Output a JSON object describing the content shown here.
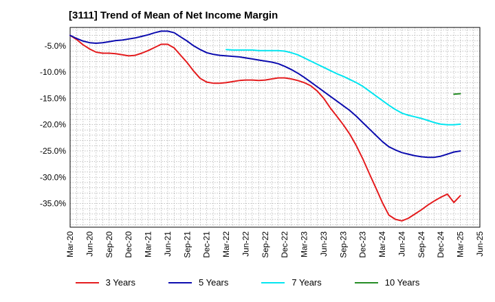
{
  "chart_data": {
    "type": "line",
    "title": "[3111]  Trend of Mean of Net Income Margin",
    "xlabel": "",
    "ylabel": "",
    "x_ticks": [
      "Mar-20",
      "Jun-20",
      "Sep-20",
      "Dec-20",
      "Mar-21",
      "Jun-21",
      "Sep-21",
      "Dec-21",
      "Mar-22",
      "Jun-22",
      "Sep-22",
      "Dec-22",
      "Mar-23",
      "Jun-23",
      "Sep-23",
      "Dec-23",
      "Mar-24",
      "Jun-24",
      "Sep-24",
      "Dec-24",
      "Mar-25",
      "Jun-25"
    ],
    "y_ticks": [
      -5,
      -10,
      -15,
      -20,
      -25,
      -30,
      -35
    ],
    "y_tick_labels": [
      "-5.0%",
      "-10.0%",
      "-15.0%",
      "-20.0%",
      "-25.0%",
      "-30.0%",
      "-35.0%"
    ],
    "ylim": [
      -39.5,
      -1.5
    ],
    "grid": true,
    "legend_position": "bottom",
    "series": [
      {
        "name": "3 Years",
        "color": "#e41a1c",
        "x": [
          "2020-03",
          "2020-04",
          "2020-05",
          "2020-06",
          "2020-07",
          "2020-08",
          "2020-09",
          "2020-10",
          "2020-11",
          "2020-12",
          "2021-01",
          "2021-02",
          "2021-03",
          "2021-04",
          "2021-05",
          "2021-06",
          "2021-07",
          "2021-08",
          "2021-09",
          "2021-10",
          "2021-11",
          "2021-12",
          "2022-01",
          "2022-02",
          "2022-03",
          "2022-04",
          "2022-05",
          "2022-06",
          "2022-07",
          "2022-08",
          "2022-09",
          "2022-10",
          "2022-11",
          "2022-12",
          "2023-01",
          "2023-02",
          "2023-03",
          "2023-04",
          "2023-05",
          "2023-06",
          "2023-07",
          "2023-08",
          "2023-09",
          "2023-10",
          "2023-11",
          "2023-12",
          "2024-01",
          "2024-02",
          "2024-03",
          "2024-04",
          "2024-05",
          "2024-06",
          "2024-07",
          "2024-08",
          "2024-09",
          "2024-10",
          "2024-11",
          "2024-12",
          "2025-01",
          "2025-02",
          "2025-03"
        ],
        "values": [
          -3.0,
          -3.8,
          -4.8,
          -5.6,
          -6.2,
          -6.4,
          -6.4,
          -6.5,
          -6.7,
          -6.9,
          -6.8,
          -6.4,
          -5.9,
          -5.3,
          -4.7,
          -4.7,
          -5.4,
          -6.8,
          -8.2,
          -9.8,
          -11.2,
          -11.9,
          -12.1,
          -12.1,
          -12.0,
          -11.8,
          -11.6,
          -11.5,
          -11.5,
          -11.6,
          -11.5,
          -11.3,
          -11.1,
          -11.1,
          -11.3,
          -11.6,
          -12.0,
          -12.6,
          -13.6,
          -15.0,
          -16.8,
          -18.4,
          -20.0,
          -21.8,
          -24.0,
          -26.5,
          -29.3,
          -32.0,
          -34.8,
          -37.2,
          -38.0,
          -38.3,
          -37.8,
          -37.0,
          -36.2,
          -35.3,
          -34.5,
          -33.8,
          -33.2,
          -34.8,
          -33.5
        ]
      },
      {
        "name": "5 Years",
        "color": "#0a0aae",
        "x": [
          "2020-03",
          "2020-04",
          "2020-05",
          "2020-06",
          "2020-07",
          "2020-08",
          "2020-09",
          "2020-10",
          "2020-11",
          "2020-12",
          "2021-01",
          "2021-02",
          "2021-03",
          "2021-04",
          "2021-05",
          "2021-06",
          "2021-07",
          "2021-08",
          "2021-09",
          "2021-10",
          "2021-11",
          "2021-12",
          "2022-01",
          "2022-02",
          "2022-03",
          "2022-04",
          "2022-05",
          "2022-06",
          "2022-07",
          "2022-08",
          "2022-09",
          "2022-10",
          "2022-11",
          "2022-12",
          "2023-01",
          "2023-02",
          "2023-03",
          "2023-04",
          "2023-05",
          "2023-06",
          "2023-07",
          "2023-08",
          "2023-09",
          "2023-10",
          "2023-11",
          "2023-12",
          "2024-01",
          "2024-02",
          "2024-03",
          "2024-04",
          "2024-05",
          "2024-06",
          "2024-07",
          "2024-08",
          "2024-09",
          "2024-10",
          "2024-11",
          "2024-12",
          "2025-01",
          "2025-02",
          "2025-03"
        ],
        "values": [
          -3.0,
          -3.6,
          -4.1,
          -4.4,
          -4.5,
          -4.4,
          -4.2,
          -4.0,
          -3.9,
          -3.7,
          -3.5,
          -3.2,
          -2.9,
          -2.5,
          -2.2,
          -2.2,
          -2.5,
          -3.3,
          -4.1,
          -5.0,
          -5.7,
          -6.3,
          -6.6,
          -6.8,
          -6.9,
          -7.0,
          -7.1,
          -7.3,
          -7.5,
          -7.7,
          -7.9,
          -8.1,
          -8.4,
          -8.9,
          -9.5,
          -10.2,
          -11.0,
          -11.9,
          -12.8,
          -13.7,
          -14.6,
          -15.5,
          -16.4,
          -17.3,
          -18.4,
          -19.6,
          -20.8,
          -22.0,
          -23.2,
          -24.2,
          -24.8,
          -25.3,
          -25.6,
          -25.9,
          -26.1,
          -26.2,
          -26.2,
          -26.0,
          -25.6,
          -25.2,
          -25.0
        ]
      },
      {
        "name": "7 Years",
        "color": "#00e5f0",
        "x": [
          "2022-03",
          "2022-04",
          "2022-05",
          "2022-06",
          "2022-07",
          "2022-08",
          "2022-09",
          "2022-10",
          "2022-11",
          "2022-12",
          "2023-01",
          "2023-02",
          "2023-03",
          "2023-04",
          "2023-05",
          "2023-06",
          "2023-07",
          "2023-08",
          "2023-09",
          "2023-10",
          "2023-11",
          "2023-12",
          "2024-01",
          "2024-02",
          "2024-03",
          "2024-04",
          "2024-05",
          "2024-06",
          "2024-07",
          "2024-08",
          "2024-09",
          "2024-10",
          "2024-11",
          "2024-12",
          "2025-01",
          "2025-02",
          "2025-03"
        ],
        "values": [
          -5.7,
          -5.8,
          -5.8,
          -5.8,
          -5.8,
          -5.9,
          -5.9,
          -5.9,
          -5.9,
          -6.0,
          -6.3,
          -6.7,
          -7.3,
          -7.9,
          -8.5,
          -9.1,
          -9.7,
          -10.3,
          -10.8,
          -11.4,
          -12.0,
          -12.7,
          -13.6,
          -14.5,
          -15.4,
          -16.3,
          -17.1,
          -17.8,
          -18.2,
          -18.5,
          -18.8,
          -19.2,
          -19.6,
          -19.9,
          -20.0,
          -20.0,
          -19.9
        ]
      },
      {
        "name": "10 Years",
        "color": "#228b22",
        "x": [
          "2025-02",
          "2025-03"
        ],
        "values": [
          -14.2,
          -14.1
        ]
      }
    ]
  }
}
